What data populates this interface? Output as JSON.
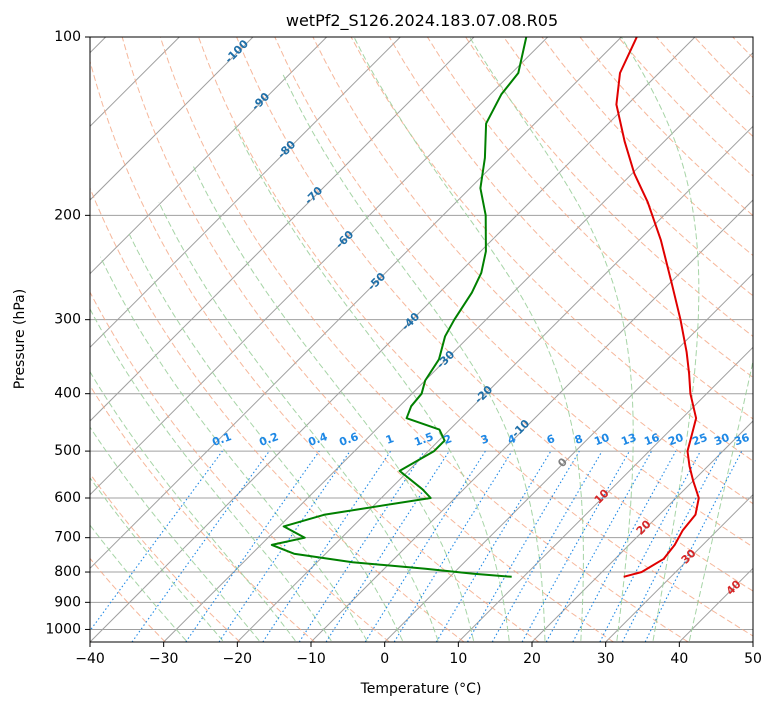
{
  "chart_data": {
    "type": "line",
    "title": "wetPf2_S126.2024.183.07.08.R05",
    "xlabel": "Temperature (°C)",
    "ylabel": "Pressure (hPa)",
    "xlim": [
      -40,
      50
    ],
    "ylim": [
      1050,
      100
    ],
    "y_scale": "log",
    "skew": "skew-T log-P",
    "x_ticks": [
      "−40",
      "−30",
      "−20",
      "−10",
      "0",
      "10",
      "20",
      "30",
      "40",
      "50"
    ],
    "y_ticks": [
      "100",
      "200",
      "300",
      "400",
      "500",
      "600",
      "700",
      "800",
      "900",
      "1000"
    ],
    "grid": true,
    "series": [
      {
        "role": "temperature",
        "color": "#e00000",
        "points": [
          {
            "p": 815,
            "t": 23.6
          },
          {
            "p": 800,
            "t": 25.4
          },
          {
            "p": 760,
            "t": 26.6
          },
          {
            "p": 720,
            "t": 26.2
          },
          {
            "p": 680,
            "t": 25.3
          },
          {
            "p": 640,
            "t": 24.9
          },
          {
            "p": 600,
            "t": 23.1
          },
          {
            "p": 560,
            "t": 19.9
          },
          {
            "p": 530,
            "t": 17.5
          },
          {
            "p": 500,
            "t": 15.2
          },
          {
            "p": 470,
            "t": 13.6
          },
          {
            "p": 440,
            "t": 11.9
          },
          {
            "p": 400,
            "t": 7.8
          },
          {
            "p": 370,
            "t": 4.9
          },
          {
            "p": 340,
            "t": 1.6
          },
          {
            "p": 300,
            "t": -3.6
          },
          {
            "p": 260,
            "t": -9.8
          },
          {
            "p": 220,
            "t": -17.1
          },
          {
            "p": 190,
            "t": -24.0
          },
          {
            "p": 170,
            "t": -29.7
          },
          {
            "p": 150,
            "t": -35.4
          },
          {
            "p": 130,
            "t": -41.5
          },
          {
            "p": 115,
            "t": -45.3
          },
          {
            "p": 100,
            "t": -47.9
          }
        ]
      },
      {
        "role": "dewpoint",
        "color": "#008000",
        "points": [
          {
            "p": 815,
            "t": 8.4
          },
          {
            "p": 805,
            "t": 2.6
          },
          {
            "p": 790,
            "t": -4.4
          },
          {
            "p": 770,
            "t": -15.2
          },
          {
            "p": 745,
            "t": -24.3
          },
          {
            "p": 720,
            "t": -28.5
          },
          {
            "p": 700,
            "t": -25.0
          },
          {
            "p": 670,
            "t": -29.4
          },
          {
            "p": 640,
            "t": -25.4
          },
          {
            "p": 600,
            "t": -13.3
          },
          {
            "p": 580,
            "t": -15.6
          },
          {
            "p": 540,
            "t": -21.2
          },
          {
            "p": 500,
            "t": -19.2
          },
          {
            "p": 480,
            "t": -19.2
          },
          {
            "p": 460,
            "t": -21.4
          },
          {
            "p": 440,
            "t": -27.4
          },
          {
            "p": 420,
            "t": -28.4
          },
          {
            "p": 400,
            "t": -28.7
          },
          {
            "p": 380,
            "t": -30.0
          },
          {
            "p": 350,
            "t": -31.0
          },
          {
            "p": 320,
            "t": -33.3
          },
          {
            "p": 300,
            "t": -34.3
          },
          {
            "p": 270,
            "t": -35.6
          },
          {
            "p": 250,
            "t": -37.0
          },
          {
            "p": 230,
            "t": -39.3
          },
          {
            "p": 200,
            "t": -44.2
          },
          {
            "p": 180,
            "t": -48.6
          },
          {
            "p": 160,
            "t": -52.1
          },
          {
            "p": 140,
            "t": -56.6
          },
          {
            "p": 125,
            "t": -58.5
          },
          {
            "p": 115,
            "t": -59.1
          },
          {
            "p": 100,
            "t": -62.9
          }
        ]
      }
    ],
    "isotherm_labels": [
      "-100",
      "-90",
      "-80",
      "-70",
      "-60",
      "-50",
      "-40",
      "-30",
      "-20",
      "-10"
    ],
    "mixing_ratio_labels": [
      "0.1",
      "0.2",
      "0.4",
      "0.6",
      "1",
      "1.5",
      "2",
      "3",
      "4",
      "6",
      "8",
      "10",
      "13",
      "16",
      "20",
      "25",
      "30",
      "36"
    ],
    "moist_adiabat_labels": [
      "0",
      "10",
      "20",
      "30",
      "40"
    ],
    "colors": {
      "temperature": "#e00000",
      "dewpoint": "#008000",
      "isotherm": "#a0a0a0",
      "isobar": "#a0a0a0",
      "dry_adiabat": "#f4a582",
      "moist_adiabat": "#9ccf9c",
      "mixing_ratio": "#1e88e5",
      "isotherm_label": "#1f6fa8",
      "moist_label": "#d62728",
      "zero_label": "#808080"
    }
  }
}
